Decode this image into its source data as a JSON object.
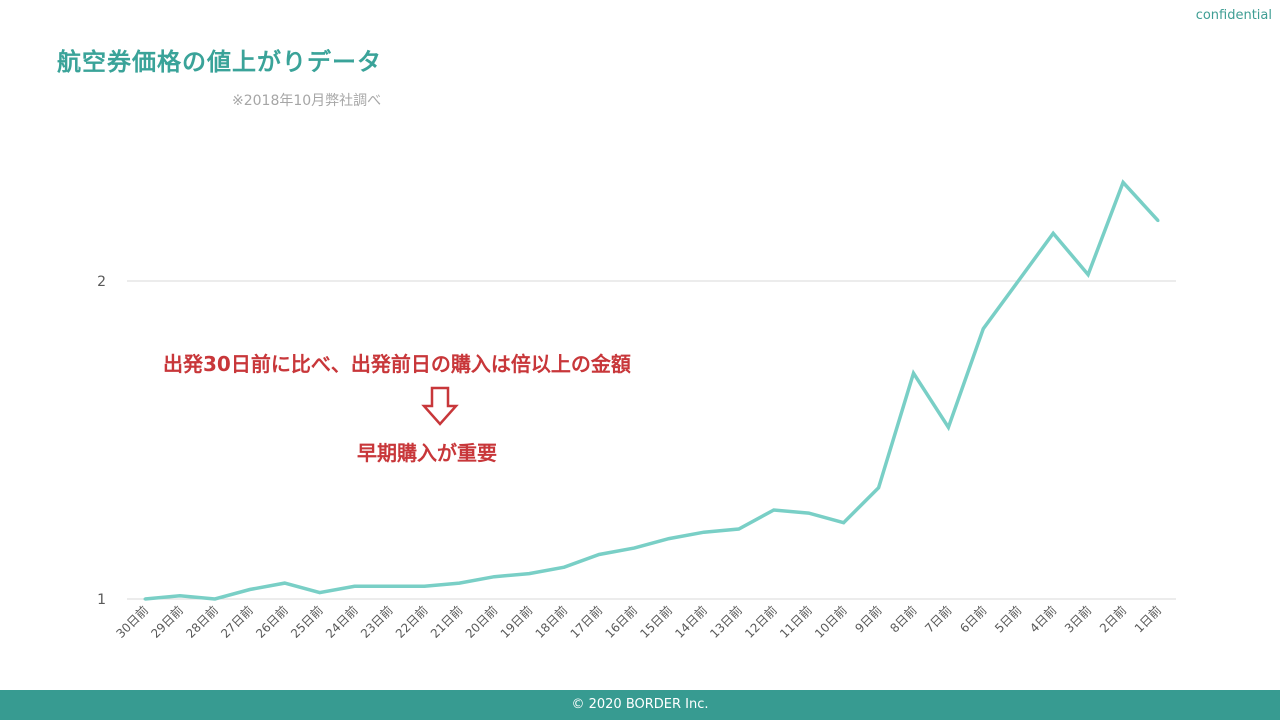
{
  "header": {
    "confidential": "confidential",
    "title": "航空券価格の値上がりデータ",
    "subtitle": "※2018年10月弊社調べ"
  },
  "annotation": {
    "main": "出発30日前に比べ、出発前日の購入は倍以上の金額",
    "sub": "早期購入が重要"
  },
  "footer": {
    "copyright": "© 2020 BORDER Inc."
  },
  "colors": {
    "line": "#79cfc6",
    "accent": "#3aa399",
    "annotation": "#c8373a",
    "footer_bg": "#379b91",
    "grid": "#d9d9d9"
  },
  "chart_data": {
    "type": "line",
    "title": "",
    "xlabel": "",
    "ylabel": "",
    "ylim": [
      1,
      2.94
    ],
    "yticks": [
      1,
      2
    ],
    "grid": true,
    "categories": [
      "30日前",
      "29日前",
      "28日前",
      "27日前",
      "26日前",
      "25日前",
      "24日前",
      "23日前",
      "22日前",
      "21日前",
      "20日前",
      "19日前",
      "18日前",
      "17日前",
      "16日前",
      "15日前",
      "14日前",
      "13日前",
      "12日前",
      "11日前",
      "10日前",
      "9日前",
      "8日前",
      "7日前",
      "6日前",
      "5日前",
      "4日前",
      "3日前",
      "2日前",
      "1日前"
    ],
    "series": [
      {
        "values": [
          1.0,
          1.01,
          1.0,
          1.03,
          1.05,
          1.02,
          1.04,
          1.04,
          1.04,
          1.05,
          1.07,
          1.08,
          1.1,
          1.14,
          1.16,
          1.19,
          1.21,
          1.22,
          1.28,
          1.27,
          1.24,
          1.35,
          1.71,
          1.54,
          1.85,
          2.0,
          2.15,
          2.02,
          2.31,
          2.19
        ]
      }
    ]
  }
}
